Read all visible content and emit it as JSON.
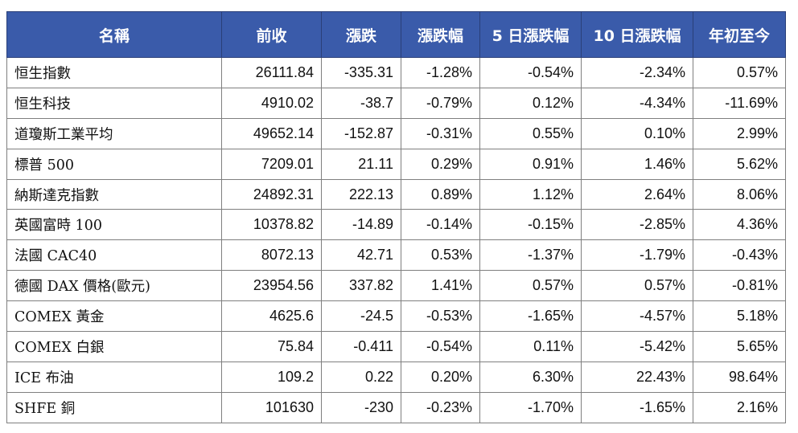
{
  "table": {
    "headers": [
      "名稱",
      "前收",
      "漲跌",
      "漲跌幅",
      "5 日漲跌幅",
      "10 日漲跌幅",
      "年初至今"
    ],
    "rows": [
      [
        "恒生指數",
        "26111.84",
        "-335.31",
        "-1.28%",
        "-0.54%",
        "-2.34%",
        "0.57%"
      ],
      [
        "恒生科技",
        "4910.02",
        "-38.7",
        "-0.79%",
        "0.12%",
        "-4.34%",
        "-11.69%"
      ],
      [
        "道瓊斯工業平均",
        "49652.14",
        "-152.87",
        "-0.31%",
        "0.55%",
        "0.10%",
        "2.99%"
      ],
      [
        "標普 500",
        "7209.01",
        "21.11",
        "0.29%",
        "0.91%",
        "1.46%",
        "5.62%"
      ],
      [
        "納斯達克指數",
        "24892.31",
        "222.13",
        "0.89%",
        "1.12%",
        "2.64%",
        "8.06%"
      ],
      [
        "英國富時 100",
        "10378.82",
        "-14.89",
        "-0.14%",
        "-0.15%",
        "-2.85%",
        "4.36%"
      ],
      [
        "法國 CAC40",
        "8072.13",
        "42.71",
        "0.53%",
        "-1.37%",
        "-1.79%",
        "-0.43%"
      ],
      [
        "德國 DAX 價格(歐元)",
        "23954.56",
        "337.82",
        "1.41%",
        "0.57%",
        "0.57%",
        "-0.81%"
      ],
      [
        "COMEX 黃金",
        "4625.6",
        "-24.5",
        "-0.53%",
        "-1.65%",
        "-4.57%",
        "5.18%"
      ],
      [
        "COMEX 白銀",
        "75.84",
        "-0.411",
        "-0.54%",
        "0.11%",
        "-5.42%",
        "5.65%"
      ],
      [
        "ICE 布油",
        "109.2",
        "0.22",
        "0.20%",
        "6.30%",
        "22.43%",
        "98.64%"
      ],
      [
        "SHFE 銅",
        "101630",
        "-230",
        "-0.23%",
        "-1.70%",
        "-1.65%",
        "2.16%"
      ]
    ]
  },
  "colors": {
    "header_bg": "#3a5baa",
    "header_text": "#ffffff",
    "border": "#7f7f7f"
  }
}
